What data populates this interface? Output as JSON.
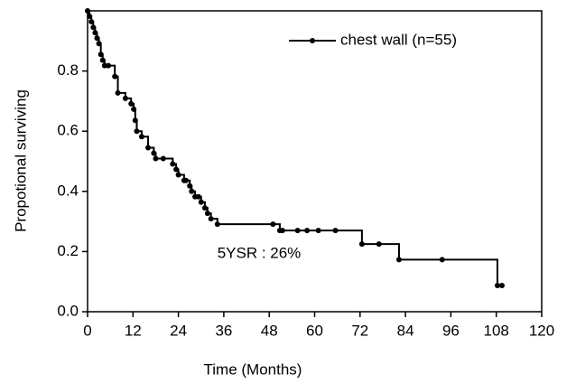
{
  "chart_data": {
    "type": "step",
    "x_label": "Time (Months)",
    "y_label": "Propotional surviving",
    "annotation": "5YSR : 26%",
    "x": [
      0,
      0.5,
      1,
      1.5,
      2,
      2.5,
      3,
      3.5,
      4,
      4.5,
      5.5,
      7.2,
      8,
      10,
      11.5,
      12.2,
      12.6,
      13,
      14.3,
      16,
      17.5,
      18,
      20,
      22.5,
      23.4,
      24,
      25.5,
      26,
      27,
      27.5,
      28.4,
      29.3,
      30,
      31,
      31.7,
      32.6,
      34.3,
      49,
      50.8,
      51.5,
      55.5,
      58,
      61,
      65.5,
      72.5,
      77,
      82.3,
      93.7,
      108.3,
      109.5
    ],
    "series": [
      {
        "name": "chest wall (n=55)",
        "color": "#000000",
        "values": [
          1.0,
          0.982,
          0.964,
          0.945,
          0.927,
          0.909,
          0.891,
          0.855,
          0.836,
          0.818,
          0.818,
          0.782,
          0.727,
          0.709,
          0.691,
          0.673,
          0.636,
          0.6,
          0.582,
          0.545,
          0.527,
          0.509,
          0.509,
          0.491,
          0.473,
          0.455,
          0.436,
          0.436,
          0.418,
          0.4,
          0.382,
          0.382,
          0.364,
          0.345,
          0.327,
          0.309,
          0.291,
          0.291,
          0.27,
          0.27,
          0.27,
          0.27,
          0.27,
          0.27,
          0.225,
          0.225,
          0.173,
          0.173,
          0.087,
          0.087
        ]
      }
    ],
    "xlim": [
      0,
      120
    ],
    "xticks": [
      0,
      12,
      24,
      36,
      48,
      60,
      72,
      84,
      96,
      108,
      120
    ],
    "ylim": [
      0,
      1.0
    ],
    "yticks": [
      {
        "value": 0,
        "label": "0.0"
      },
      0.2,
      0.4,
      0.6,
      0.8
    ],
    "legend": "upper right",
    "grid": false
  }
}
